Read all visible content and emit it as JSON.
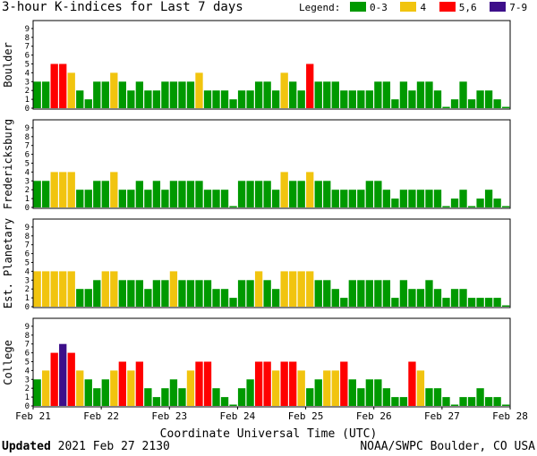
{
  "title": "3-hour K-indices for Last 7 days",
  "legend": {
    "label": "Legend:",
    "items": [
      {
        "label": "0-3",
        "color": "#009900"
      },
      {
        "label": "4",
        "color": "#f1c40f"
      },
      {
        "label": "5,6",
        "color": "#ff0000"
      },
      {
        "label": "7-9",
        "color": "#3d0f8a"
      }
    ]
  },
  "footer": {
    "updated_label": "Updated",
    "updated_value": "2021 Feb 27 2130",
    "credit": "NOAA/SWPC Boulder, CO USA"
  },
  "chart_data": {
    "type": "bar",
    "xlabel": "Coordinate Universal Time (UTC)",
    "x_ticks": [
      "Feb 21",
      "Feb 22",
      "Feb 23",
      "Feb 24",
      "Feb 25",
      "Feb 26",
      "Feb 27",
      "Feb 28"
    ],
    "ylim": [
      0,
      9
    ],
    "y_ticks": [
      "0",
      "1",
      "2",
      "3",
      "4",
      "5",
      "6",
      "7",
      "8",
      "9"
    ],
    "bins_per_day": 8,
    "color_scale": [
      {
        "range": "0-3",
        "color": "#009900"
      },
      {
        "range": "4",
        "color": "#f1c40f"
      },
      {
        "range": "5-6",
        "color": "#ff0000"
      },
      {
        "range": "7-9",
        "color": "#3d0f8a"
      }
    ],
    "panels": [
      {
        "ylabel": "Boulder",
        "values": [
          3,
          3,
          5,
          5,
          4,
          2,
          1,
          3,
          3,
          4,
          3,
          2,
          3,
          2,
          2,
          3,
          3,
          3,
          3,
          4,
          2,
          2,
          2,
          1,
          2,
          2,
          3,
          3,
          2,
          4,
          3,
          2,
          5,
          3,
          3,
          3,
          2,
          2,
          2,
          2,
          3,
          3,
          1,
          3,
          2,
          3,
          3,
          2,
          0,
          1,
          3,
          1,
          2,
          2,
          1,
          0
        ]
      },
      {
        "ylabel": "Fredericksburg",
        "values": [
          3,
          3,
          4,
          4,
          4,
          2,
          2,
          3,
          3,
          4,
          2,
          2,
          3,
          2,
          3,
          2,
          3,
          3,
          3,
          3,
          2,
          2,
          2,
          0,
          3,
          3,
          3,
          3,
          2,
          4,
          3,
          3,
          4,
          3,
          3,
          2,
          2,
          2,
          2,
          3,
          3,
          2,
          1,
          2,
          2,
          2,
          2,
          2,
          0,
          1,
          2,
          0,
          1,
          2,
          1,
          0
        ]
      },
      {
        "ylabel": "Est. Planetary",
        "values": [
          4,
          4,
          4,
          4,
          4,
          2,
          2,
          3,
          4,
          4,
          3,
          3,
          3,
          2,
          3,
          3,
          4,
          3,
          3,
          3,
          3,
          2,
          2,
          1,
          3,
          3,
          4,
          3,
          2,
          4,
          4,
          4,
          4,
          3,
          3,
          2,
          1,
          3,
          3,
          3,
          3,
          3,
          1,
          3,
          2,
          2,
          3,
          2,
          1,
          2,
          2,
          1,
          1,
          1,
          1,
          0
        ]
      },
      {
        "ylabel": "College",
        "values": [
          3,
          4,
          6,
          7,
          6,
          4,
          3,
          2,
          3,
          4,
          5,
          4,
          5,
          2,
          1,
          2,
          3,
          2,
          4,
          5,
          5,
          2,
          1,
          0,
          2,
          3,
          5,
          5,
          4,
          5,
          5,
          4,
          2,
          3,
          4,
          4,
          5,
          3,
          2,
          3,
          3,
          2,
          1,
          1,
          5,
          4,
          2,
          2,
          1,
          0,
          1,
          1,
          2,
          1,
          1,
          0
        ]
      }
    ]
  }
}
